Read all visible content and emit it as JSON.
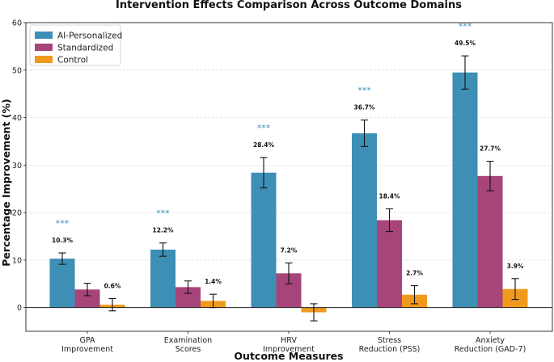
{
  "chart_data": {
    "type": "bar",
    "title": "Intervention Effects Comparison Across Outcome Domains",
    "xlabel": "Outcome Measures",
    "ylabel": "Percentage Improvement (%)",
    "ylim": [
      -5,
      60
    ],
    "yticks": [
      0,
      10,
      20,
      30,
      40,
      50,
      60
    ],
    "grid": true,
    "legend_position": "top-left",
    "categories": [
      [
        "GPA",
        "Improvement"
      ],
      [
        "Examination",
        "Scores"
      ],
      [
        "HRV",
        "Improvement"
      ],
      [
        "Stress",
        "Reduction (PSS)"
      ],
      [
        "Anxiety",
        "Reduction (GAD-7)"
      ]
    ],
    "series": [
      {
        "name": "AI-Personalized",
        "color": "#3d8fb5",
        "values": [
          10.3,
          12.2,
          28.4,
          36.7,
          49.5
        ],
        "errors": [
          1.2,
          1.4,
          3.2,
          2.8,
          3.5
        ],
        "labels": [
          "10.3%",
          "12.2%",
          "28.4%",
          "36.7%",
          "49.5%"
        ],
        "significance": [
          "***",
          "***",
          "***",
          "***",
          "***"
        ]
      },
      {
        "name": "Standardized",
        "color": "#a7447a",
        "values": [
          3.8,
          4.3,
          7.2,
          18.4,
          27.7
        ],
        "errors": [
          1.3,
          1.3,
          2.2,
          2.4,
          3.1
        ],
        "labels": [
          "",
          "",
          "7.2%",
          "18.4%",
          "27.7%"
        ]
      },
      {
        "name": "Control",
        "color": "#f09a1d",
        "values": [
          0.6,
          1.4,
          -1.0,
          2.7,
          3.9
        ],
        "errors": [
          1.3,
          1.4,
          1.8,
          1.9,
          2.2
        ],
        "labels": [
          "0.6%",
          "1.4%",
          "",
          "2.7%",
          "3.9%"
        ]
      }
    ],
    "significance_color": "#3d8fb5"
  }
}
